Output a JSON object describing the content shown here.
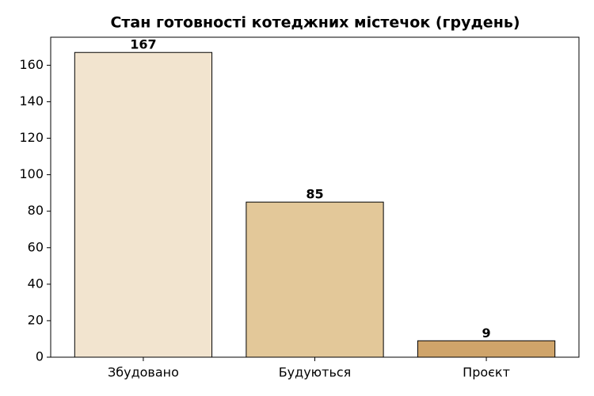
{
  "chart_data": {
    "type": "bar",
    "title": "Стан готовності котеджних містечок (грудень)",
    "categories": [
      "Збудовано",
      "Будуються",
      "Проєкт"
    ],
    "values": [
      167,
      85,
      9
    ],
    "colors": [
      "#f2e4cf",
      "#e3c899",
      "#cfa46a"
    ],
    "ylim": [
      0,
      175.35
    ],
    "yticks": [
      0,
      20,
      40,
      60,
      80,
      100,
      120,
      140,
      160
    ],
    "grid": false
  }
}
